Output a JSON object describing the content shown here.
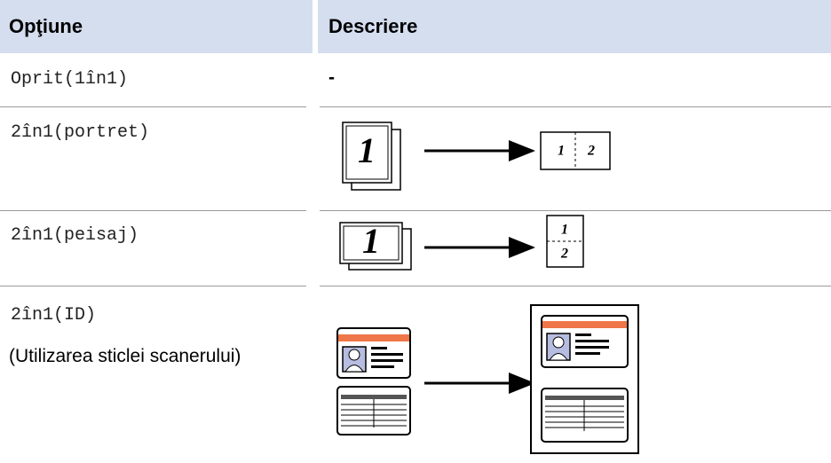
{
  "table": {
    "header": [
      "Opţiune",
      "Descriere"
    ],
    "rows": [
      {
        "option": [
          "Oprit(1în1)"
        ],
        "description": "-"
      },
      {
        "option": [
          "2în1(portret)"
        ],
        "diagram_text": [
          "1",
          "1",
          "2"
        ]
      },
      {
        "option": [
          "2în1(peisaj)"
        ],
        "diagram_text": [
          "1",
          "1",
          "2"
        ]
      },
      {
        "option": [
          "2în1(ID)",
          "(Utilizarea sticlei scanerului)"
        ]
      }
    ]
  }
}
